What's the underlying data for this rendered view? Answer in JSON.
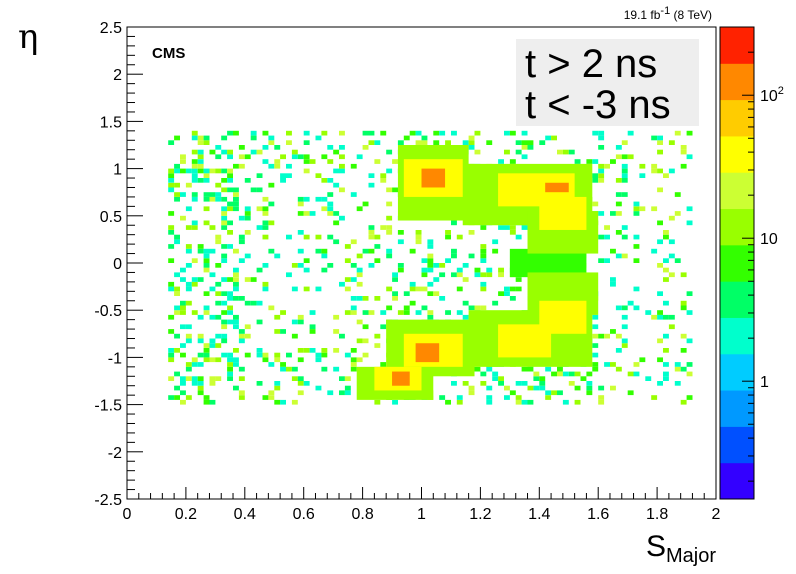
{
  "chart_data": {
    "type": "heatmap",
    "title": "",
    "xlabel": "S",
    "xlabel_subscript": "Major",
    "ylabel": "η",
    "xlim": [
      0,
      2
    ],
    "ylim": [
      -2.5,
      2.5
    ],
    "x_ticks": [
      "0",
      "0.2",
      "0.4",
      "0.6",
      "0.8",
      "1",
      "1.2",
      "1.4",
      "1.6",
      "1.8",
      "2"
    ],
    "y_ticks": [
      "-2.5",
      "-2",
      "-1.5",
      "-1",
      "-0.5",
      "0",
      "0.5",
      "1",
      "1.5",
      "2",
      "2.5"
    ],
    "z_scale": "log",
    "z_ticks": [
      {
        "value": 1,
        "base": "1",
        "sup": ""
      },
      {
        "value": 10,
        "base": "10",
        "sup": ""
      },
      {
        "value": 100,
        "base": "10",
        "sup": "2"
      }
    ],
    "z_range": [
      0.15,
      300
    ],
    "palette": [
      "#3300ff",
      "#0050ff",
      "#0099ff",
      "#00ccff",
      "#00ffcc",
      "#00ff66",
      "#33ff00",
      "#99ff00",
      "#ccff33",
      "#ffff00",
      "#ffcc00",
      "#ff8800",
      "#ff2200"
    ],
    "annotations": {
      "experiment": "CMS",
      "lumi": "19.1 fb",
      "lumi_sup": "-1",
      "lumi_energy": " (8 TeV)",
      "conditions": [
        "t >  2 ns",
        "t < -3 ns"
      ]
    },
    "bins": [
      {
        "x_min": 1.0,
        "x_max": 1.08,
        "y_min": 0.8,
        "y_max": 1.0,
        "z": 150
      },
      {
        "x_min": 1.42,
        "x_max": 1.5,
        "y_min": 0.75,
        "y_max": 0.85,
        "z": 150
      },
      {
        "x_min": 0.98,
        "x_max": 1.06,
        "y_min": -1.05,
        "y_max": -0.85,
        "z": 150
      },
      {
        "x_min": 0.9,
        "x_max": 0.96,
        "y_min": -1.3,
        "y_max": -1.15,
        "z": 150
      },
      {
        "x_min": 0.94,
        "x_max": 1.14,
        "y_min": 0.7,
        "y_max": 1.1,
        "z": 40
      },
      {
        "x_min": 1.26,
        "x_max": 1.52,
        "y_min": 0.6,
        "y_max": 0.95,
        "z": 40
      },
      {
        "x_min": 1.4,
        "x_max": 1.56,
        "y_min": 0.35,
        "y_max": 0.7,
        "z": 40
      },
      {
        "x_min": 0.94,
        "x_max": 1.14,
        "y_min": -1.1,
        "y_max": -0.75,
        "z": 40
      },
      {
        "x_min": 1.26,
        "x_max": 1.44,
        "y_min": -1.0,
        "y_max": -0.65,
        "z": 40
      },
      {
        "x_min": 1.4,
        "x_max": 1.56,
        "y_min": -0.75,
        "y_max": -0.4,
        "z": 40
      },
      {
        "x_min": 0.84,
        "x_max": 1.0,
        "y_min": -1.35,
        "y_max": -1.1,
        "z": 40
      },
      {
        "x_min": 0.92,
        "x_max": 1.16,
        "y_min": 0.45,
        "y_max": 1.25,
        "z": 16
      },
      {
        "x_min": 1.14,
        "x_max": 1.58,
        "y_min": 0.4,
        "y_max": 1.05,
        "z": 16
      },
      {
        "x_min": 1.36,
        "x_max": 1.6,
        "y_min": 0.1,
        "y_max": 0.55,
        "z": 16
      },
      {
        "x_min": 0.88,
        "x_max": 1.18,
        "y_min": -1.2,
        "y_max": -0.6,
        "z": 16
      },
      {
        "x_min": 1.16,
        "x_max": 1.58,
        "y_min": -1.1,
        "y_max": -0.5,
        "z": 16
      },
      {
        "x_min": 1.36,
        "x_max": 1.6,
        "y_min": -0.55,
        "y_max": -0.1,
        "z": 16
      },
      {
        "x_min": 0.78,
        "x_max": 1.04,
        "y_min": -1.45,
        "y_max": -1.1,
        "z": 16
      },
      {
        "x_min": 1.3,
        "x_max": 1.56,
        "y_min": -0.15,
        "y_max": 0.15,
        "z": 8
      }
    ]
  }
}
